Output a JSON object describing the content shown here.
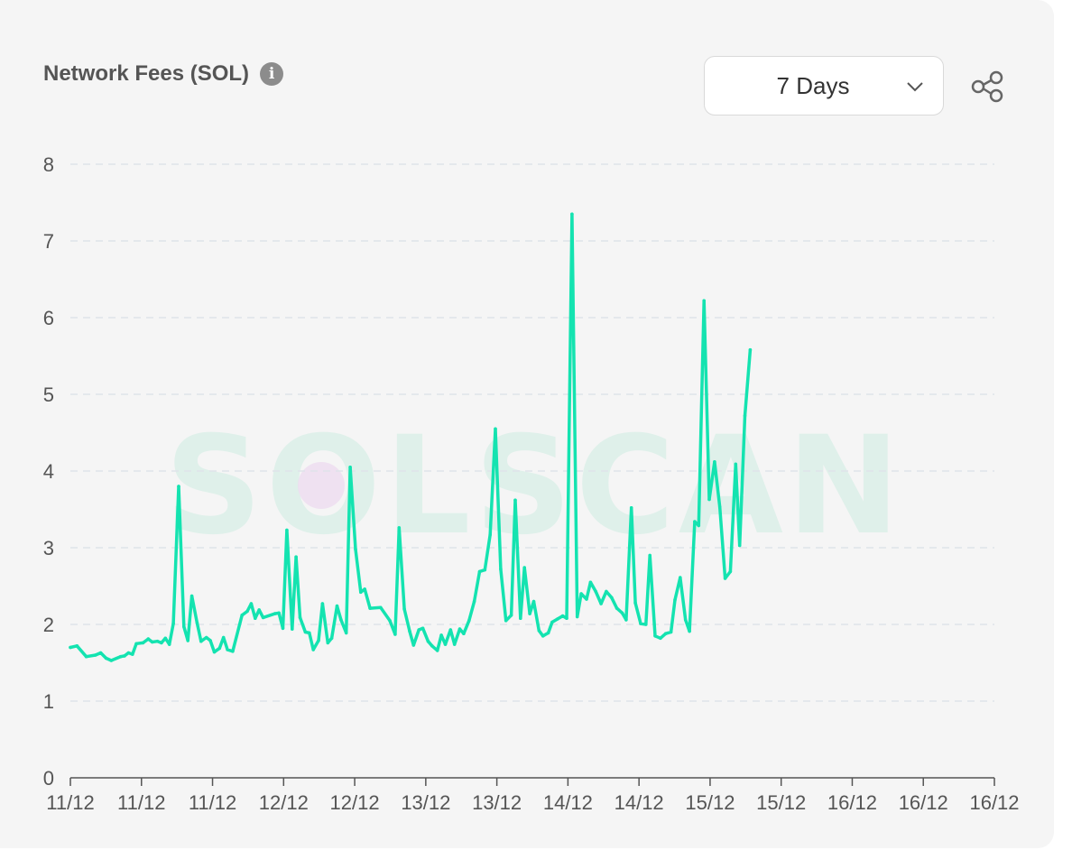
{
  "card": {
    "title": "Network Fees (SOL)",
    "info_glyph": "i",
    "range_select": {
      "value": "7 Days"
    },
    "share_icon": "share-icon",
    "watermark": "SOLSCAN"
  },
  "colors": {
    "line": "#14e3b0",
    "grid": "#dfe3ea",
    "axis": "#555555",
    "background": "#f5f5f5"
  },
  "chart_data": {
    "type": "line",
    "title": "Network Fees (SOL)",
    "ylim": [
      0,
      8
    ],
    "yticks": [
      0,
      1,
      2,
      3,
      4,
      5,
      6,
      7,
      8
    ],
    "xlim": [
      0,
      7
    ],
    "x_tick_labels": [
      "11/12",
      "11/12",
      "11/12",
      "12/12",
      "12/12",
      "13/12",
      "13/12",
      "14/12",
      "14/12",
      "15/12",
      "15/12",
      "16/12",
      "16/12",
      "16/12"
    ],
    "grid": true,
    "legend": "none",
    "series": [
      {
        "name": "",
        "values": [
          [
            0.0,
            1.7
          ],
          [
            0.05,
            1.72
          ],
          [
            0.12,
            1.58
          ],
          [
            0.19,
            1.6
          ],
          [
            0.23,
            1.63
          ],
          [
            0.27,
            1.56
          ],
          [
            0.31,
            1.53
          ],
          [
            0.38,
            1.58
          ],
          [
            0.41,
            1.59
          ],
          [
            0.44,
            1.63
          ],
          [
            0.47,
            1.61
          ],
          [
            0.5,
            1.75
          ],
          [
            0.55,
            1.76
          ],
          [
            0.59,
            1.81
          ],
          [
            0.62,
            1.77
          ],
          [
            0.66,
            1.78
          ],
          [
            0.69,
            1.76
          ],
          [
            0.72,
            1.82
          ],
          [
            0.75,
            1.74
          ],
          [
            0.78,
            2.01
          ],
          [
            0.82,
            3.8
          ],
          [
            0.86,
            1.97
          ],
          [
            0.89,
            1.79
          ],
          [
            0.92,
            2.37
          ],
          [
            0.96,
            2.02
          ],
          [
            0.99,
            1.78
          ],
          [
            1.03,
            1.83
          ],
          [
            1.06,
            1.79
          ],
          [
            1.09,
            1.64
          ],
          [
            1.13,
            1.69
          ],
          [
            1.16,
            1.83
          ],
          [
            1.19,
            1.67
          ],
          [
            1.23,
            1.65
          ],
          [
            1.3,
            2.12
          ],
          [
            1.34,
            2.17
          ],
          [
            1.37,
            2.27
          ],
          [
            1.4,
            2.08
          ],
          [
            1.43,
            2.19
          ],
          [
            1.46,
            2.09
          ],
          [
            1.55,
            2.14
          ],
          [
            1.58,
            2.15
          ],
          [
            1.61,
            1.95
          ],
          [
            1.64,
            3.23
          ],
          [
            1.68,
            1.94
          ],
          [
            1.71,
            2.88
          ],
          [
            1.74,
            2.09
          ],
          [
            1.78,
            1.9
          ],
          [
            1.81,
            1.89
          ],
          [
            1.84,
            1.67
          ],
          [
            1.88,
            1.79
          ],
          [
            1.91,
            2.27
          ],
          [
            1.95,
            1.76
          ],
          [
            1.98,
            1.82
          ],
          [
            2.02,
            2.24
          ],
          [
            2.05,
            2.06
          ],
          [
            2.09,
            1.89
          ],
          [
            2.12,
            4.05
          ],
          [
            2.16,
            2.98
          ],
          [
            2.2,
            2.42
          ],
          [
            2.23,
            2.46
          ],
          [
            2.27,
            2.21
          ],
          [
            2.35,
            2.22
          ],
          [
            2.42,
            2.05
          ],
          [
            2.46,
            1.87
          ],
          [
            2.49,
            3.26
          ],
          [
            2.53,
            2.2
          ],
          [
            2.57,
            1.91
          ],
          [
            2.6,
            1.73
          ],
          [
            2.64,
            1.93
          ],
          [
            2.67,
            1.95
          ],
          [
            2.71,
            1.78
          ],
          [
            2.74,
            1.72
          ],
          [
            2.78,
            1.66
          ],
          [
            2.81,
            1.86
          ],
          [
            2.84,
            1.74
          ],
          [
            2.88,
            1.93
          ],
          [
            2.91,
            1.74
          ],
          [
            2.95,
            1.94
          ],
          [
            2.98,
            1.88
          ],
          [
            3.02,
            2.05
          ],
          [
            3.06,
            2.3
          ],
          [
            3.1,
            2.69
          ],
          [
            3.14,
            2.71
          ],
          [
            3.18,
            3.17
          ],
          [
            3.22,
            4.55
          ],
          [
            3.26,
            2.72
          ],
          [
            3.3,
            2.05
          ],
          [
            3.34,
            2.12
          ],
          [
            3.37,
            3.62
          ],
          [
            3.41,
            2.08
          ],
          [
            3.44,
            2.74
          ],
          [
            3.48,
            2.14
          ],
          [
            3.51,
            2.3
          ],
          [
            3.55,
            1.92
          ],
          [
            3.58,
            1.85
          ],
          [
            3.62,
            1.89
          ],
          [
            3.65,
            2.03
          ],
          [
            3.69,
            2.07
          ],
          [
            3.73,
            2.11
          ],
          [
            3.76,
            2.08
          ],
          [
            3.8,
            7.35
          ],
          [
            3.84,
            2.1
          ],
          [
            3.87,
            2.4
          ],
          [
            3.91,
            2.33
          ],
          [
            3.94,
            2.55
          ],
          [
            3.98,
            2.43
          ],
          [
            4.02,
            2.27
          ],
          [
            4.06,
            2.43
          ],
          [
            4.1,
            2.35
          ],
          [
            4.14,
            2.21
          ],
          [
            4.18,
            2.15
          ],
          [
            4.21,
            2.06
          ],
          [
            4.25,
            3.52
          ],
          [
            4.28,
            2.28
          ],
          [
            4.32,
            2.01
          ],
          [
            4.36,
            2.0
          ],
          [
            4.39,
            2.9
          ],
          [
            4.43,
            1.85
          ],
          [
            4.47,
            1.82
          ],
          [
            4.51,
            1.88
          ],
          [
            4.55,
            1.9
          ],
          [
            4.58,
            2.32
          ],
          [
            4.62,
            2.61
          ],
          [
            4.66,
            2.06
          ],
          [
            4.69,
            1.91
          ],
          [
            4.73,
            3.34
          ],
          [
            4.76,
            3.29
          ],
          [
            4.8,
            6.22
          ],
          [
            4.84,
            3.63
          ],
          [
            4.88,
            4.12
          ],
          [
            4.92,
            3.53
          ],
          [
            4.96,
            2.6
          ],
          [
            5.0,
            2.69
          ],
          [
            5.04,
            4.09
          ],
          [
            5.07,
            3.03
          ],
          [
            5.11,
            4.72
          ],
          [
            5.15,
            5.58
          ]
        ]
      }
    ]
  }
}
